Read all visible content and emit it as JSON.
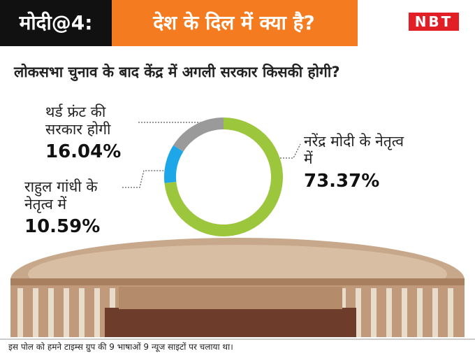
{
  "header": {
    "series": "मोदी@4:",
    "headline": "देश के दिल में क्या है?",
    "logo": "NBT"
  },
  "chart_data": {
    "type": "donut",
    "title": "लोकसभा चुनाव के बाद केंद्र में अगली सरकार किसकी होगी?",
    "categories": [
      "नरेंद्र मोदी के नेतृत्व में",
      "राहुल गांधी के नेतृत्व में",
      "थर्ड फ्रंट की सरकार होगी"
    ],
    "values": [
      73.37,
      10.59,
      16.04
    ],
    "value_labels": [
      "73.37%",
      "10.59%",
      "16.04%"
    ],
    "colors": [
      "#9cc63c",
      "#1ea7e8",
      "#9a9a9a"
    ]
  },
  "footer": "इस पोल को हमने टाइम्स ग्रुप की 9 भाषाओं 9 न्यूज साइटों पर चलाया था।"
}
